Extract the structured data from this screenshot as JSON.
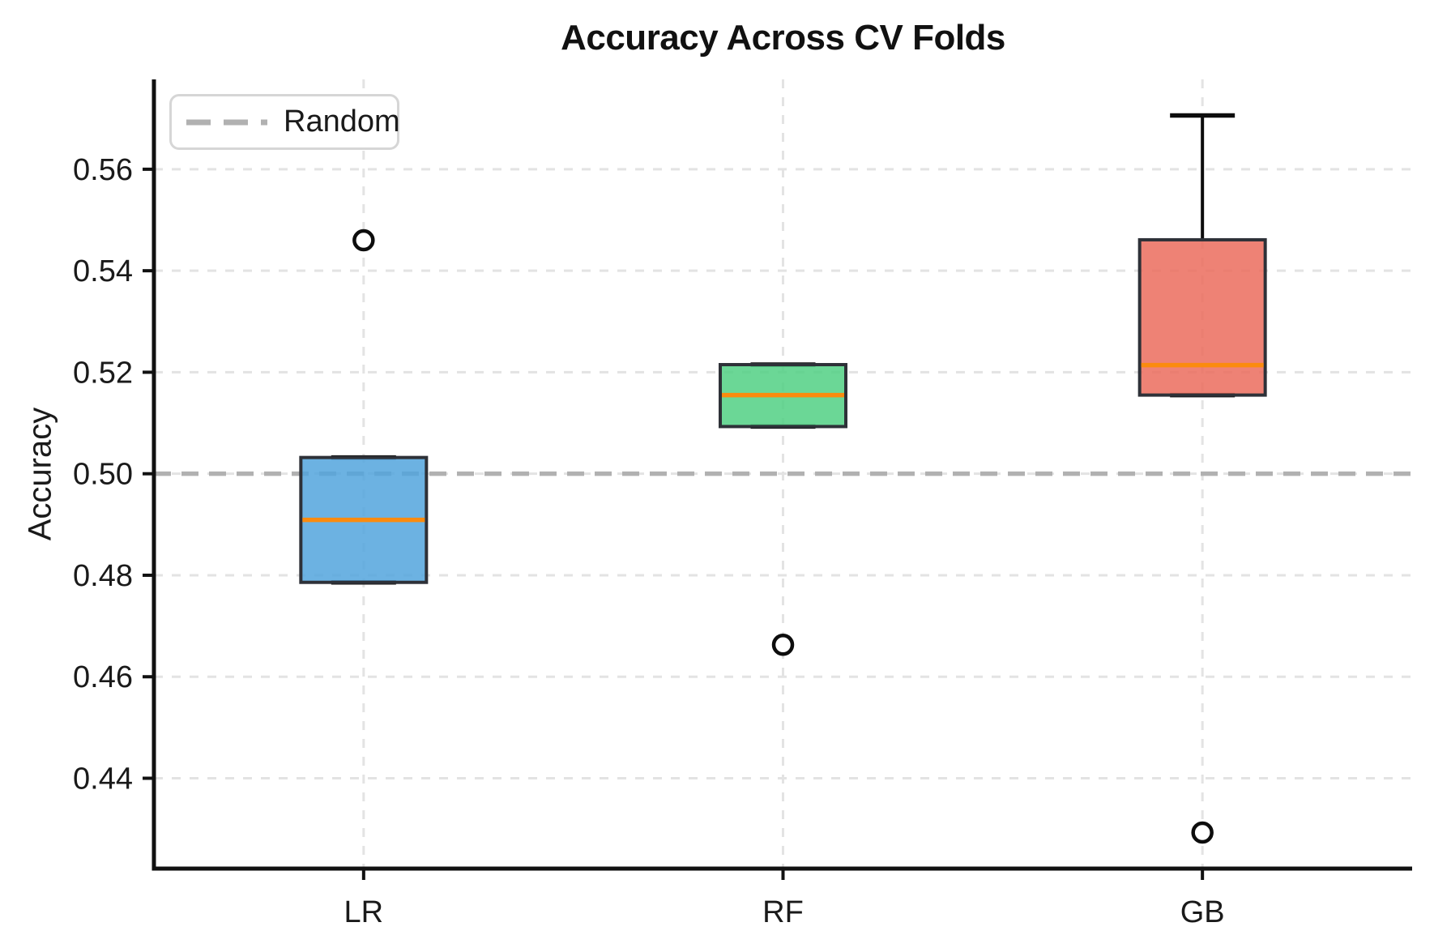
{
  "page_background": "#ffffff",
  "legend": {
    "label": "Random",
    "position": "upper left"
  },
  "chart_data": {
    "type": "box",
    "title": "Accuracy Across CV Folds",
    "xlabel": "",
    "ylabel": "Accuracy",
    "categories": [
      "LR",
      "RF",
      "GB"
    ],
    "series": [
      {
        "name": "LR",
        "color": "#52a5dd",
        "q1": 0.4786,
        "median": 0.4909,
        "q3": 0.5032,
        "whisker_low": 0.4786,
        "whisker_high": 0.5032,
        "outliers": [
          0.546
        ]
      },
      {
        "name": "RF",
        "color": "#51d084",
        "q1": 0.5093,
        "median": 0.5155,
        "q3": 0.5215,
        "whisker_low": 0.5093,
        "whisker_high": 0.5215,
        "outliers": [
          0.4663
        ]
      },
      {
        "name": "GB",
        "color": "#eb6c5d",
        "q1": 0.5155,
        "median": 0.5214,
        "q3": 0.5461,
        "whisker_low": 0.5155,
        "whisker_high": 0.5706,
        "outliers": [
          0.4293
        ]
      }
    ],
    "yticks": [
      0.44,
      0.46,
      0.48,
      0.5,
      0.52,
      0.54,
      0.56
    ],
    "ytick_labels": [
      "0.44",
      "0.46",
      "0.48",
      "0.50",
      "0.52",
      "0.54",
      "0.56"
    ],
    "ylim": [
      0.4222,
      0.5777
    ],
    "grid": true,
    "random_line": {
      "label": "Random",
      "value": 0.5,
      "color": "#b1b1b1"
    },
    "colors": {
      "median": "#fb8b0e",
      "box_edge": "#2e3138",
      "whisker": "#0d0d0d",
      "grid": "#e3e3e3",
      "spine": "#111111",
      "text": "#1a1a1a",
      "legend_border": "#d6d6d6"
    }
  }
}
